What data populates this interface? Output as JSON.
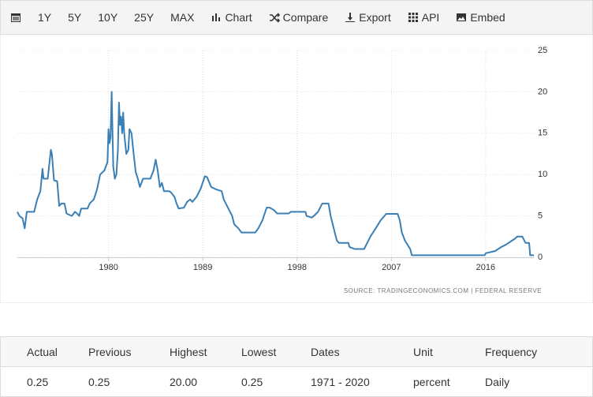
{
  "toolbar": {
    "buttons": [
      "1Y",
      "5Y",
      "10Y",
      "25Y",
      "MAX",
      "Chart",
      "Compare",
      "Export",
      "API",
      "Embed"
    ]
  },
  "chart_data": {
    "type": "line",
    "source": "SOURCE: TRADINGECONOMICS.COM  |  FEDERAL RESERVE",
    "color": "#3a7fb5",
    "grid": true,
    "xlim": [
      1971.3,
      2020.6
    ],
    "xticks": [
      1980,
      1989,
      1998,
      2007,
      2016
    ],
    "ylim": [
      0,
      25
    ],
    "yticks": [
      0,
      5,
      10,
      15,
      20,
      25
    ],
    "x": [
      1971.3,
      1971.5,
      1971.8,
      1972.0,
      1972.2,
      1972.9,
      1973.2,
      1973.5,
      1973.7,
      1973.8,
      1974.2,
      1974.5,
      1974.6,
      1974.8,
      1975.1,
      1975.3,
      1975.5,
      1975.8,
      1976.0,
      1976.5,
      1976.8,
      1977.0,
      1977.2,
      1977.4,
      1978.0,
      1978.2,
      1978.6,
      1978.9,
      1979.2,
      1979.6,
      1979.9,
      1980.0,
      1980.1,
      1980.2,
      1980.3,
      1980.45,
      1980.6,
      1980.75,
      1980.9,
      1981.0,
      1981.1,
      1981.2,
      1981.3,
      1981.4,
      1981.5,
      1981.7,
      1981.9,
      1982.0,
      1982.2,
      1982.4,
      1982.6,
      1982.8,
      1983.0,
      1983.3,
      1983.6,
      1984.0,
      1984.3,
      1984.5,
      1984.7,
      1984.9,
      1985.1,
      1985.3,
      1985.8,
      1986.0,
      1986.3,
      1986.5,
      1986.7,
      1987.2,
      1987.5,
      1987.8,
      1988.0,
      1988.4,
      1988.8,
      1989.2,
      1989.4,
      1989.8,
      1990.3,
      1990.8,
      1991.0,
      1991.4,
      1991.8,
      1992.0,
      1992.4,
      1992.7,
      1994.0,
      1994.3,
      1994.7,
      1995.1,
      1995.4,
      1995.8,
      1996.1,
      1997.2,
      1997.4,
      1998.8,
      1998.9,
      1999.4,
      1999.6,
      2000.0,
      2000.4,
      2001.0,
      2001.2,
      2001.5,
      2001.8,
      2002.0,
      2002.9,
      2003.0,
      2003.5,
      2004.4,
      2004.6,
      2005.0,
      2005.5,
      2006.0,
      2006.5,
      2007.6,
      2007.8,
      2008.0,
      2008.3,
      2008.8,
      2008.95,
      2015.9,
      2016.0,
      2016.9,
      2017.2,
      2017.5,
      2017.9,
      2018.2,
      2018.5,
      2018.8,
      2019.0,
      2019.5,
      2019.6,
      2019.8,
      2020.15,
      2020.2,
      2020.25,
      2020.6
    ],
    "values": [
      5.5,
      5.0,
      4.7,
      3.5,
      5.5,
      5.5,
      7,
      8,
      10.7,
      9.5,
      9.5,
      13,
      12.5,
      9.3,
      9.2,
      6.2,
      6.5,
      6.5,
      5.3,
      5.0,
      5.5,
      5.3,
      5.0,
      5.9,
      5.9,
      6.5,
      7,
      8.2,
      10,
      10.5,
      11.5,
      15.5,
      13.8,
      14.5,
      20,
      11,
      9.5,
      10,
      13,
      18.7,
      16,
      17,
      15,
      17.5,
      15,
      12.5,
      13,
      15.5,
      15,
      12.5,
      10.3,
      9.5,
      8.5,
      9.5,
      9.5,
      9.5,
      10.5,
      11.8,
      10.5,
      8.5,
      9.0,
      8,
      8,
      7.8,
      7.3,
      6.5,
      5.9,
      6.0,
      6.7,
      7.0,
      6.7,
      7.3,
      8.3,
      9.8,
      9.7,
      8.5,
      8.2,
      8.0,
      7.0,
      6.0,
      5.0,
      4.0,
      3.5,
      3.0,
      3.0,
      3.5,
      4.5,
      6.0,
      6.0,
      5.7,
      5.3,
      5.3,
      5.5,
      5.5,
      5.0,
      4.8,
      5.0,
      5.5,
      6.5,
      6.5,
      5.0,
      3.5,
      2.0,
      1.75,
      1.75,
      1.25,
      1.0,
      1.0,
      1.5,
      2.5,
      3.5,
      4.5,
      5.25,
      5.25,
      4.5,
      3.0,
      2.0,
      1.0,
      0.25,
      0.25,
      0.5,
      0.75,
      1.0,
      1.25,
      1.5,
      1.75,
      2.0,
      2.25,
      2.5,
      2.5,
      2.25,
      1.75,
      1.75,
      1.0,
      0.25,
      0.25
    ]
  },
  "table": {
    "headers": [
      "Actual",
      "Previous",
      "Highest",
      "Lowest",
      "Dates",
      "Unit",
      "Frequency"
    ],
    "row": [
      "0.25",
      "0.25",
      "20.00",
      "0.25",
      "1971 - 2020",
      "percent",
      "Daily"
    ]
  }
}
